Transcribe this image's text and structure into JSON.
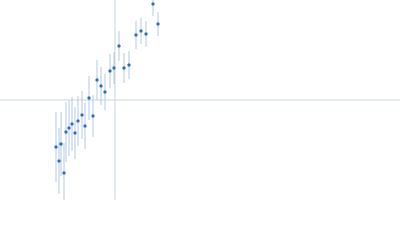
{
  "chart_data": {
    "type": "scatter",
    "x": [
      -59,
      -56,
      -54,
      -51,
      -49,
      -46,
      -43,
      -40,
      -37,
      -33,
      -30,
      -26,
      -22,
      -18,
      -14,
      -10,
      -5,
      -1,
      4,
      9,
      14,
      21,
      26,
      31,
      38,
      43
    ],
    "values": [
      -47,
      -61,
      -44,
      -73,
      -32,
      -28,
      -24,
      -33,
      -21,
      -15,
      -26,
      2,
      -16,
      20,
      14,
      8,
      29,
      32,
      54,
      32,
      35,
      65,
      69,
      66,
      96,
      76
    ],
    "errors": [
      35,
      33,
      32,
      30,
      30,
      28,
      27,
      26,
      25,
      24,
      23,
      22,
      21,
      20,
      19,
      18,
      17,
      16,
      15,
      15,
      14,
      14,
      13,
      13,
      12,
      12
    ],
    "xlim": [
      -115,
      285
    ],
    "ylim": [
      -100,
      100
    ],
    "xticks": [
      0
    ],
    "yticks": [
      0
    ],
    "tick_labels": false,
    "color": "#2f6db5",
    "error_color": "#b3c8e4",
    "axis_color": "#c8d4e3"
  }
}
